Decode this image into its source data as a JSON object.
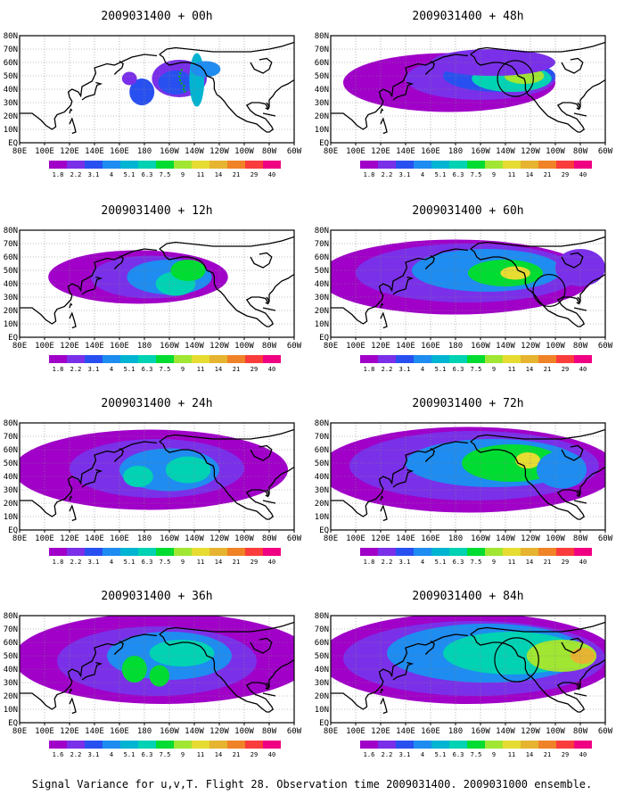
{
  "caption": "Signal Variance for u,v,T. Flight 28. Observation time 2009031400. 2009031000 ensemble.",
  "panels": [
    {
      "title": "2009031400 + 00h"
    },
    {
      "title": "2009031400 + 48h"
    },
    {
      "title": "2009031400 + 12h"
    },
    {
      "title": "2009031400 + 60h"
    },
    {
      "title": "2009031400 + 24h"
    },
    {
      "title": "2009031400 + 72h"
    },
    {
      "title": "2009031400 + 36h"
    },
    {
      "title": "2009031400 + 84h"
    }
  ],
  "x_ticks": [
    "80E",
    "100E",
    "120E",
    "140E",
    "160E",
    "180",
    "160W",
    "140W",
    "120W",
    "100W",
    "80W",
    "60W"
  ],
  "y_ticks": [
    "80N",
    "70N",
    "60N",
    "50N",
    "40N",
    "30N",
    "20N",
    "10N",
    "EQ"
  ],
  "colorbar": {
    "labels": [
      "1.8",
      "2.2",
      "3.1",
      "4",
      "5.1",
      "6.3",
      "7.5",
      "9",
      "11",
      "14",
      "21",
      "29",
      "40"
    ],
    "labels_last_panel": [
      "1.6",
      "2.2",
      "3.1",
      "4",
      "5.1",
      "6.3",
      "7.5",
      "9",
      "11",
      "14",
      "21",
      "29",
      "40"
    ],
    "colors": [
      "#a000c8",
      "#7a30e8",
      "#2850f0",
      "#1e8cf0",
      "#00b4d2",
      "#00d2b4",
      "#00dc32",
      "#a0e632",
      "#e6dc32",
      "#e6b430",
      "#f08228",
      "#fa3c3c",
      "#f00082"
    ]
  },
  "background_color": "#ffffff"
}
